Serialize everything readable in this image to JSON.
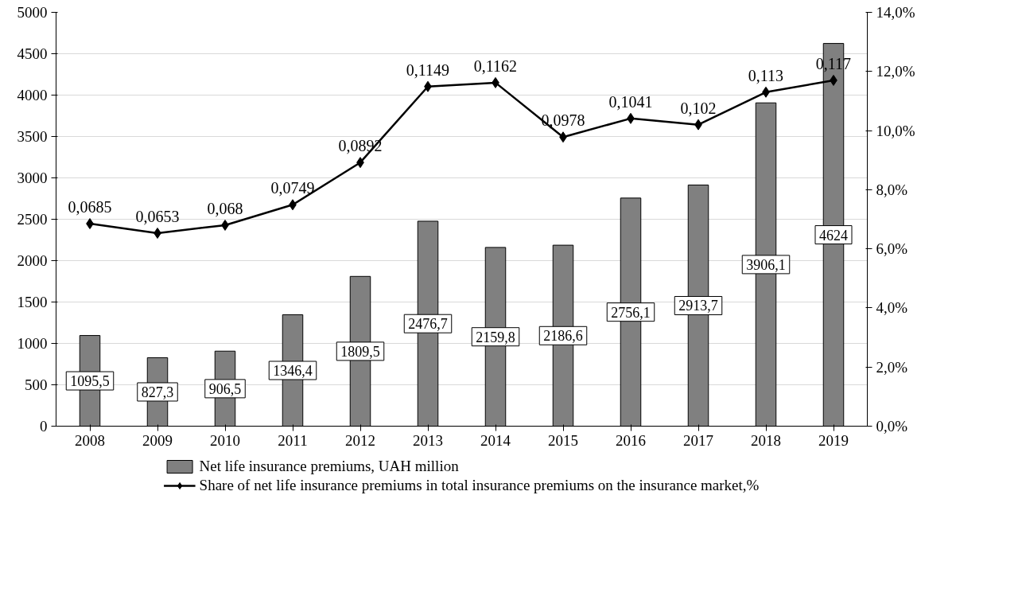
{
  "chart_data": {
    "type": "bar",
    "categories": [
      "2008",
      "2009",
      "2010",
      "2011",
      "2012",
      "2013",
      "2014",
      "2015",
      "2016",
      "2017",
      "2018",
      "2019"
    ],
    "series": [
      {
        "name": "Net life insurance premiums, UAH million",
        "color": "#808080",
        "values": [
          1095.5,
          827.3,
          906.5,
          1346.4,
          1809.5,
          2476.7,
          2159.8,
          2186.6,
          2756.1,
          2913.7,
          3906.1,
          4624
        ],
        "value_labels": [
          "1095,5",
          "827,3",
          "906,5",
          "1346,4",
          "1809,5",
          "2476,7",
          "2159,8",
          "2186,6",
          "2756,1",
          "2913,7",
          "3906,1",
          "4624"
        ]
      },
      {
        "name": "Share of net life insurance premiums in total insurance premiums on the insurance market,%",
        "type": "line",
        "axis": "y2",
        "color": "#000000",
        "marker": "diamond",
        "values": [
          0.0685,
          0.0653,
          0.068,
          0.0749,
          0.0892,
          0.1149,
          0.1162,
          0.0978,
          0.1041,
          0.102,
          0.113,
          0.117
        ],
        "value_labels": [
          "0,0685",
          "0,0653",
          "0,068",
          "0,0749",
          "0,0892",
          "0,1149",
          "0,1162",
          "0,0978",
          "0,1041",
          "0,102",
          "0,113",
          "0,117"
        ]
      }
    ],
    "ylim": [
      0,
      5000
    ],
    "yticks": [
      0,
      500,
      1000,
      1500,
      2000,
      2500,
      3000,
      3500,
      4000,
      4500,
      5000
    ],
    "y2lim": [
      0,
      0.14
    ],
    "y2ticks": [
      {
        "value": 0,
        "label": "0,0%"
      },
      {
        "value": 0.02,
        "label": "2,0%"
      },
      {
        "value": 0.04,
        "label": "4,0%"
      },
      {
        "value": 0.06,
        "label": "6,0%"
      },
      {
        "value": 0.08,
        "label": "8,0%"
      },
      {
        "value": 0.1,
        "label": "10,0%"
      },
      {
        "value": 0.12,
        "label": "12,0%"
      },
      {
        "value": 0.14,
        "label": "14,0%"
      }
    ],
    "grid": "y",
    "legend": "bottom"
  }
}
